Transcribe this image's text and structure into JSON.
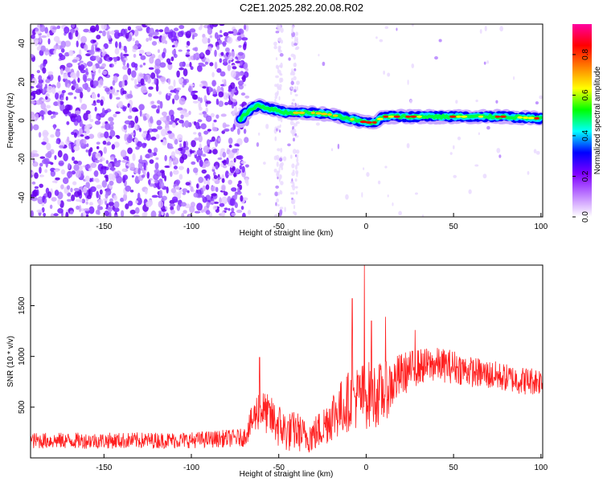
{
  "title": "C2E1.2025.282.20.08.R02",
  "chart_data": [
    {
      "type": "heatmap",
      "xlabel": "Height of straight line (km)",
      "ylabel": "Frequency (Hz)",
      "xlim": [
        -192,
        101
      ],
      "ylim": [
        -50,
        50
      ],
      "xticks": [
        -150,
        -100,
        -50,
        0,
        50,
        100
      ],
      "yticks": [
        -40,
        -20,
        0,
        20,
        40
      ],
      "ridge": {
        "x": [
          -72,
          -70,
          -67,
          -62,
          -55,
          -50,
          -45,
          -40,
          -30,
          -20,
          -10,
          0,
          5,
          10,
          20,
          40,
          60,
          80,
          100
        ],
        "frequency": [
          0,
          3,
          5,
          8,
          6,
          5,
          4,
          4,
          4,
          3,
          1,
          -1,
          -1,
          2,
          2,
          2,
          2,
          2,
          1
        ]
      },
      "colorbar": {
        "label": "Normalized spectral amplitude",
        "ticks": [
          0.0,
          0.2,
          0.4,
          0.6,
          0.8
        ],
        "range": [
          0,
          0.95
        ],
        "colors": [
          "#ffffff",
          "#c080ff",
          "#8000ff",
          "#0000ff",
          "#00ffff",
          "#00ff00",
          "#ffff00",
          "#ff8000",
          "#ff0000",
          "#ff00a0"
        ]
      }
    },
    {
      "type": "line",
      "xlabel": "Height of straight line (km)",
      "ylabel": "SNR (10 * v/v)",
      "xlim": [
        -192,
        101
      ],
      "ylim": [
        0,
        1900
      ],
      "xticks": [
        -150,
        -100,
        -50,
        0,
        50,
        100
      ],
      "yticks": [
        500,
        1000,
        1500
      ],
      "color": "#ff2020",
      "envelope": {
        "x": [
          -192,
          -150,
          -100,
          -70,
          -61,
          -58,
          -50,
          -45,
          -40,
          -35,
          -30,
          -25,
          -20,
          -15,
          -10,
          -5,
          0,
          5,
          10,
          20,
          30,
          40,
          50,
          60,
          70,
          80,
          90,
          100
        ],
        "mean": [
          170,
          170,
          175,
          200,
          500,
          450,
          320,
          250,
          270,
          210,
          230,
          300,
          420,
          480,
          560,
          600,
          620,
          620,
          640,
          820,
          900,
          920,
          900,
          850,
          820,
          790,
          760,
          760
        ],
        "spread": [
          80,
          80,
          80,
          90,
          220,
          200,
          230,
          200,
          200,
          170,
          180,
          200,
          260,
          280,
          300,
          320,
          340,
          330,
          300,
          220,
          180,
          170,
          170,
          150,
          150,
          140,
          140,
          140
        ]
      },
      "spikes": [
        {
          "x": -61,
          "y": 990
        },
        {
          "x": -8,
          "y": 1570
        },
        {
          "x": -1,
          "y": 1900
        },
        {
          "x": 3,
          "y": 1350
        },
        {
          "x": 11,
          "y": 1390
        },
        {
          "x": 28,
          "y": 1260
        }
      ]
    }
  ]
}
